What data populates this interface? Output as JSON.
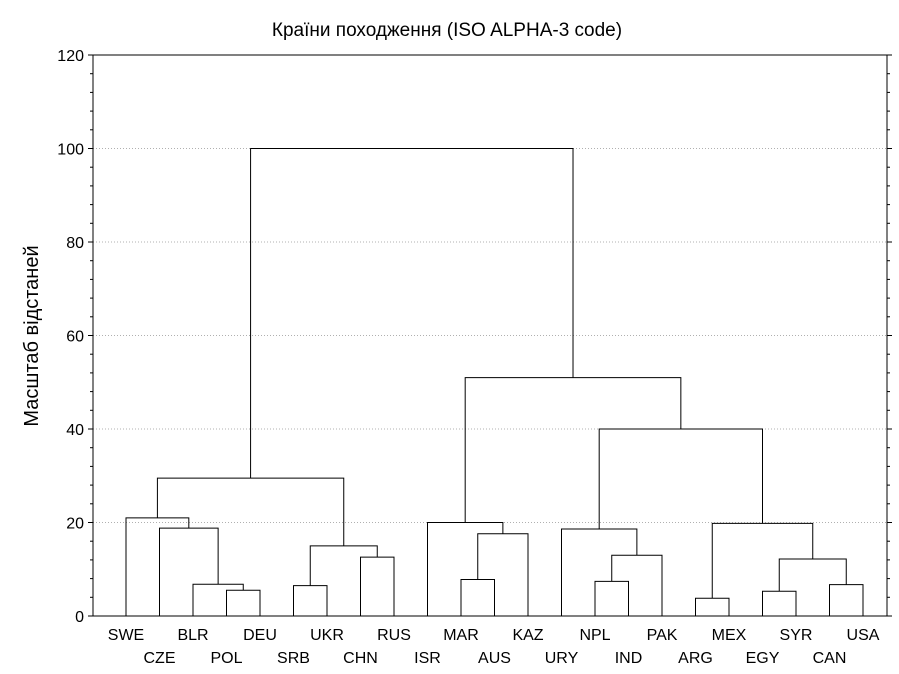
{
  "chart_data": {
    "type": "dendrogram",
    "title": "Країни походження (ISO ALPHA-3 code)",
    "xlabel": "",
    "ylabel": "Масштаб відстаней",
    "ylim": [
      0,
      120
    ],
    "yticks": [
      0,
      20,
      40,
      60,
      80,
      100,
      120
    ],
    "grid": true,
    "leaves": [
      "SWE",
      "CZE",
      "BLR",
      "POL",
      "DEU",
      "SRB",
      "UKR",
      "CHN",
      "RUS",
      "ISR",
      "MAR",
      "AUS",
      "KAZ",
      "URY",
      "NPL",
      "IND",
      "PAK",
      "ARG",
      "MEX",
      "EGY",
      "SYR",
      "CAN",
      "USA"
    ],
    "merges": [
      {
        "id": "m1",
        "left": "POL",
        "right": "DEU",
        "height": 5.5
      },
      {
        "id": "m2",
        "left": "BLR",
        "right": "m1",
        "height": 6.8
      },
      {
        "id": "m3",
        "left": "CZE",
        "right": "m2",
        "height": 18.8
      },
      {
        "id": "m4",
        "left": "SWE",
        "right": "m3",
        "height": 21.0
      },
      {
        "id": "m5",
        "left": "SRB",
        "right": "UKR",
        "height": 6.5
      },
      {
        "id": "m6",
        "left": "CHN",
        "right": "RUS",
        "height": 12.6
      },
      {
        "id": "m7",
        "left": "m5",
        "right": "m6",
        "height": 15.0
      },
      {
        "id": "m8",
        "left": "m4",
        "right": "m7",
        "height": 29.5
      },
      {
        "id": "m9",
        "left": "MAR",
        "right": "AUS",
        "height": 7.8
      },
      {
        "id": "m10",
        "left": "m9",
        "right": "KAZ",
        "height": 17.6
      },
      {
        "id": "m11",
        "left": "ISR",
        "right": "m10",
        "height": 20.0
      },
      {
        "id": "m12",
        "left": "NPL",
        "right": "IND",
        "height": 7.4
      },
      {
        "id": "m13",
        "left": "m12",
        "right": "PAK",
        "height": 13.0
      },
      {
        "id": "m14",
        "left": "URY",
        "right": "m13",
        "height": 18.6
      },
      {
        "id": "m15",
        "left": "ARG",
        "right": "MEX",
        "height": 3.8
      },
      {
        "id": "m16",
        "left": "EGY",
        "right": "SYR",
        "height": 5.3
      },
      {
        "id": "m17",
        "left": "CAN",
        "right": "USA",
        "height": 6.7
      },
      {
        "id": "m18",
        "left": "m16",
        "right": "m17",
        "height": 12.2
      },
      {
        "id": "m19",
        "left": "m15",
        "right": "m18",
        "height": 19.8
      },
      {
        "id": "m20",
        "left": "m14",
        "right": "m19",
        "height": 40.0
      },
      {
        "id": "m21",
        "left": "m11",
        "right": "m20",
        "height": 51.0
      },
      {
        "id": "m22",
        "left": "m8",
        "right": "m21",
        "height": 100.0
      }
    ]
  }
}
